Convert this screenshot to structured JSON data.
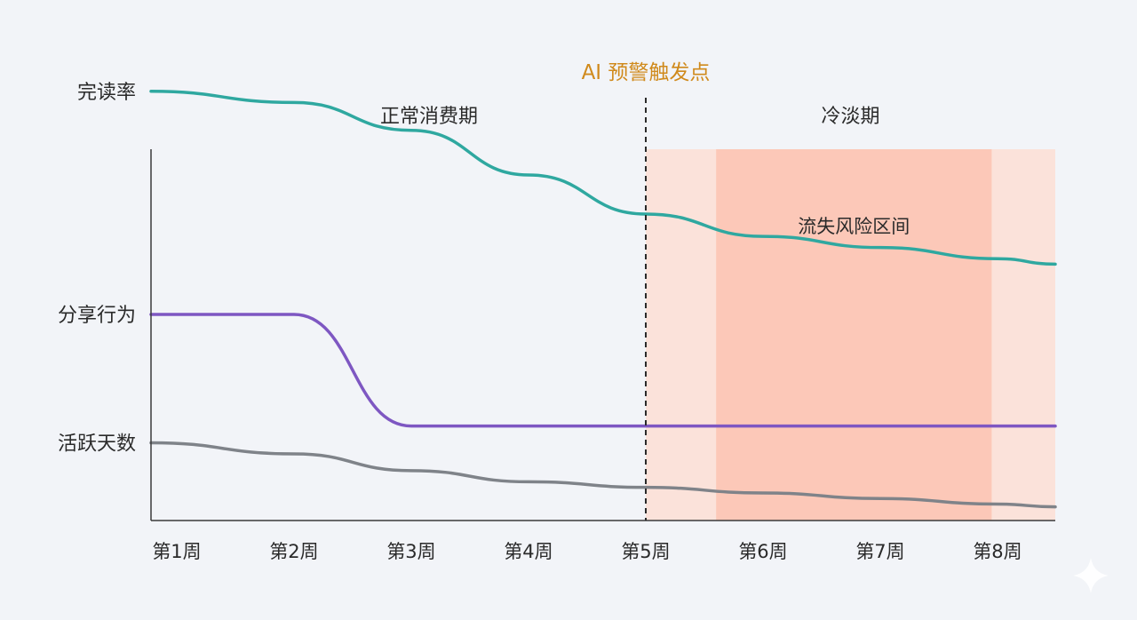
{
  "chart_data": {
    "type": "line",
    "categories": [
      "第1周",
      "第2周",
      "第3周",
      "第4周",
      "第5周",
      "第6周",
      "第7周",
      "第8周"
    ],
    "series": [
      {
        "name": "完读率",
        "color": "#2fa8a0",
        "values": [
          0.9,
          0.88,
          0.83,
          0.75,
          0.68,
          0.64,
          0.62,
          0.6
        ]
      },
      {
        "name": "分享行为",
        "color": "#7e57c2",
        "values": [
          0.5,
          0.5,
          0.3,
          0.3,
          0.3,
          0.3,
          0.3,
          0.3
        ]
      },
      {
        "name": "活跃天数",
        "color": "#7f8389",
        "values": [
          0.27,
          0.25,
          0.22,
          0.2,
          0.19,
          0.18,
          0.17,
          0.16
        ]
      }
    ],
    "ylim": [
      0,
      1
    ],
    "y_tick_labels_show_series": true,
    "grid": false,
    "annotations": {
      "trigger": {
        "label": "AI 预警触发点",
        "at": "第5周",
        "color": "#d08a1c"
      },
      "periods": [
        {
          "label": "正常消费期",
          "from": "第1周",
          "to": "第5周"
        },
        {
          "label": "冷淡期",
          "from": "第5周",
          "to": "第8周"
        }
      ],
      "risk_zone": {
        "label": "流失风险区间",
        "from": 5.6,
        "to": 7.95,
        "color": "#fcc8b8"
      },
      "cold_zone_color": "#fbe2da"
    }
  }
}
